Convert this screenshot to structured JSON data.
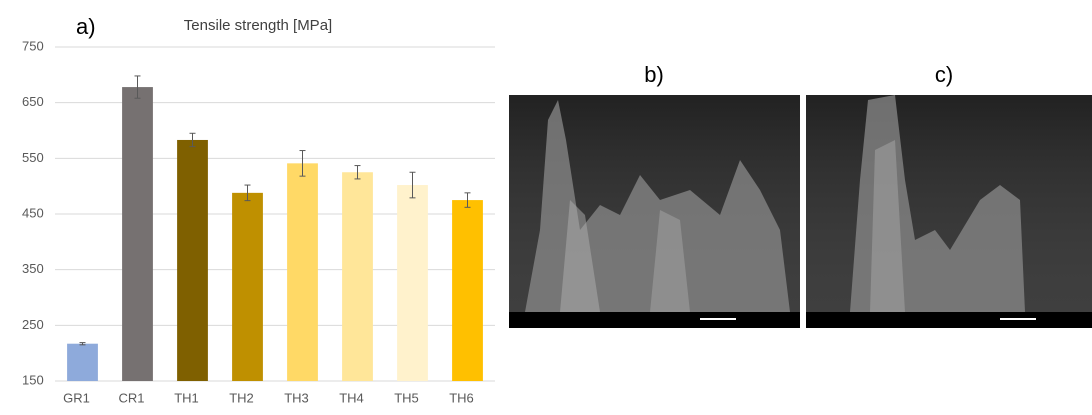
{
  "panels": [
    "a)",
    "b)",
    "c)"
  ],
  "chart_data": {
    "type": "bar",
    "title": "Tensile strength [MPa]",
    "categories": [
      "GR1",
      "CR1",
      "TH1",
      "TH2",
      "TH3",
      "TH4",
      "TH5",
      "TH6"
    ],
    "values": [
      217,
      678,
      583,
      488,
      541,
      525,
      502,
      475
    ],
    "errors": [
      2,
      20,
      12,
      14,
      23,
      12,
      23,
      13
    ],
    "colors": [
      "#8eaadb",
      "#767171",
      "#7f6000",
      "#bf9000",
      "#ffd966",
      "#ffe699",
      "#fff2cc",
      "#ffc000"
    ],
    "ylim": [
      150,
      750
    ],
    "yticks": [
      150,
      250,
      350,
      450,
      550,
      650,
      750
    ],
    "grid": true
  }
}
